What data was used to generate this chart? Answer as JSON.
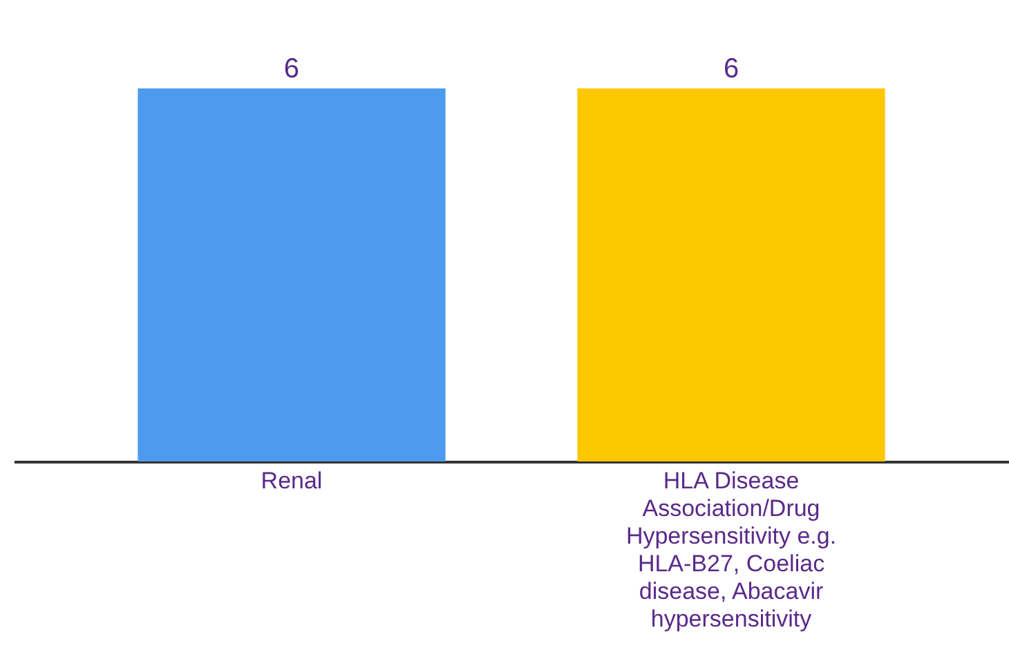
{
  "chart_data": {
    "type": "bar",
    "categories": [
      "Renal",
      "HLA Disease Association/Drug Hypersensitivity e.g. HLA-B27, Coeliac disease, Abacavir hypersensitivity"
    ],
    "values": [
      6,
      6
    ],
    "colors": [
      "#4d9bef",
      "#fdc800"
    ],
    "data_labels": true
  }
}
